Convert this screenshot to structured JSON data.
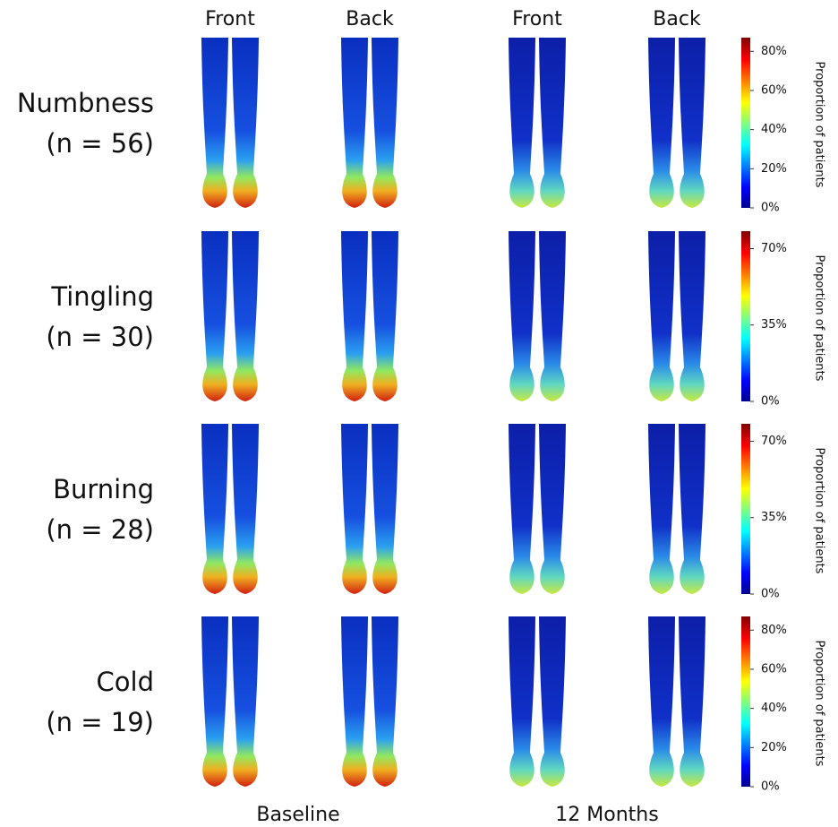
{
  "column_headers": [
    "Front",
    "Back",
    "Front",
    "Back"
  ],
  "groups": [
    "Baseline",
    "12 Months"
  ],
  "rows": [
    {
      "symptom": "Numbness",
      "n": "(n = 56)",
      "colorbar": {
        "range": [
          0,
          87
        ],
        "label": "Proportion of patients",
        "ticks": [
          {
            "value": 80,
            "label": "80%"
          },
          {
            "value": 60,
            "label": "60%"
          },
          {
            "value": 40,
            "label": "40%"
          },
          {
            "value": 20,
            "label": "20%"
          },
          {
            "value": 0,
            "label": "0%"
          }
        ]
      }
    },
    {
      "symptom": "Tingling",
      "n": "(n = 30)",
      "colorbar": {
        "range": [
          0,
          78
        ],
        "label": "Proportion of patients",
        "ticks": [
          {
            "value": 70,
            "label": "70%"
          },
          {
            "value": 35,
            "label": "35%"
          },
          {
            "value": 0,
            "label": "0%"
          }
        ]
      }
    },
    {
      "symptom": "Burning",
      "n": "(n = 28)",
      "colorbar": {
        "range": [
          0,
          78
        ],
        "label": "Proportion of patients",
        "ticks": [
          {
            "value": 70,
            "label": "70%"
          },
          {
            "value": 35,
            "label": "35%"
          },
          {
            "value": 0,
            "label": "0%"
          }
        ]
      }
    },
    {
      "symptom": "Cold",
      "n": "(n = 19)",
      "colorbar": {
        "range": [
          0,
          87
        ],
        "label": "Proportion of patients",
        "ticks": [
          {
            "value": 80,
            "label": "80%"
          },
          {
            "value": 60,
            "label": "60%"
          },
          {
            "value": 40,
            "label": "40%"
          },
          {
            "value": 20,
            "label": "20%"
          },
          {
            "value": 0,
            "label": "0%"
          }
        ]
      }
    }
  ]
}
